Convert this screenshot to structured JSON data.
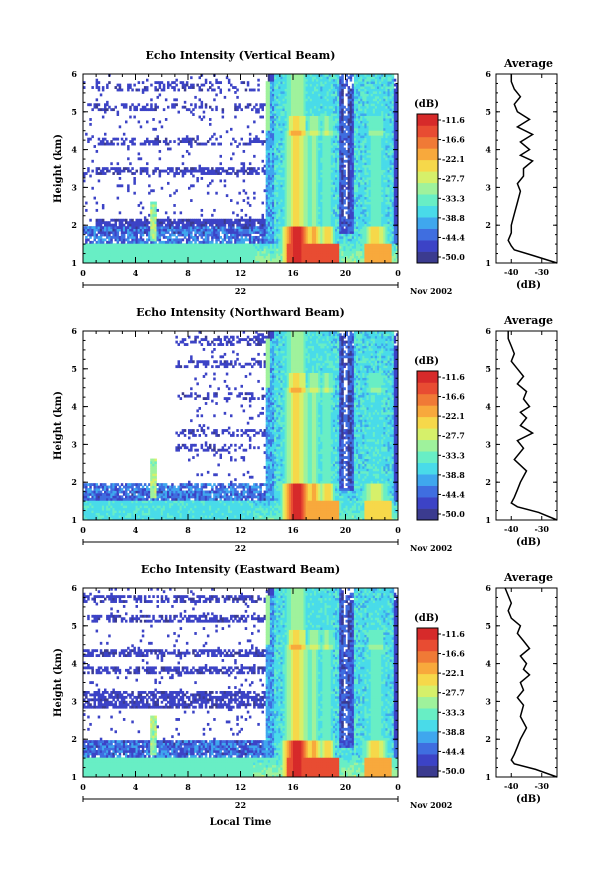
{
  "colors": {
    "palette": [
      "#3b3b8f",
      "#3c43c6",
      "#3f6ee0",
      "#3fa7ee",
      "#49dbe9",
      "#68eec5",
      "#9ff29c",
      "#d6f06a",
      "#f6d84a",
      "#f8a93c",
      "#f07a36",
      "#e84c32",
      "#d62a2a"
    ]
  },
  "shared": {
    "colorbar_unit": "(dB)",
    "colorbar_ticks": [
      "-11.6",
      "-16.6",
      "-22.1",
      "-27.7",
      "-33.3",
      "-38.8",
      "-44.4",
      "-50.0"
    ],
    "time_ticks": [
      "0",
      "4",
      "8",
      "12",
      "16",
      "20",
      "0"
    ],
    "date_center": "22",
    "date_right": "Nov 2002",
    "height_ticks": [
      "1",
      "2",
      "3",
      "4",
      "5",
      "6"
    ],
    "ylabel": "Height (km)",
    "avg_title": "Average",
    "avg_xticks": [
      "-40",
      "-30"
    ],
    "avg_xlabel": "(dB)",
    "xlabel": "Local Time"
  },
  "chart_data": [
    {
      "type": "heatmap",
      "title": "Echo Intensity (Vertical Beam)",
      "ylabel": "Height (km)",
      "ylim": [
        1,
        6
      ],
      "xlim_hours": [
        0,
        24
      ],
      "colorbar_range_db": [
        -50.0,
        -11.6
      ],
      "average_profile": {
        "xlim_db": [
          -45,
          -25
        ],
        "height_km": [
          1.0,
          1.2,
          1.35,
          1.45,
          1.6,
          1.8,
          2.0,
          2.3,
          2.6,
          2.9,
          3.1,
          3.3,
          3.5,
          3.7,
          3.85,
          4.0,
          4.2,
          4.4,
          4.6,
          4.8,
          5.0,
          5.2,
          5.4,
          5.6,
          5.8,
          6.0
        ],
        "echo_db": [
          -25,
          -33,
          -39,
          -40,
          -41,
          -40,
          -40,
          -39,
          -38,
          -37,
          -38,
          -36,
          -36,
          -33,
          -37,
          -34,
          -37,
          -33,
          -38,
          -34,
          -38,
          -39,
          -37,
          -39,
          -40,
          -40
        ]
      }
    },
    {
      "type": "heatmap",
      "title": "Echo Intensity (Northward Beam)",
      "ylabel": "Height (km)",
      "ylim": [
        1,
        6
      ],
      "xlim_hours": [
        0,
        24
      ],
      "colorbar_range_db": [
        -50.0,
        -11.6
      ],
      "average_profile": {
        "xlim_db": [
          -45,
          -25
        ],
        "height_km": [
          1.0,
          1.2,
          1.35,
          1.45,
          1.6,
          1.8,
          2.0,
          2.3,
          2.6,
          2.9,
          3.1,
          3.3,
          3.5,
          3.7,
          3.85,
          4.0,
          4.2,
          4.4,
          4.6,
          4.8,
          5.0,
          5.2,
          5.4,
          5.6,
          5.8,
          6.0
        ],
        "echo_db": [
          -25,
          -31,
          -38,
          -40,
          -39,
          -38,
          -37,
          -35,
          -39,
          -36,
          -38,
          -33,
          -37,
          -35,
          -37,
          -34,
          -36,
          -35,
          -38,
          -36,
          -38,
          -40,
          -39,
          -40,
          -41,
          -41
        ]
      }
    },
    {
      "type": "heatmap",
      "title": "Echo Intensity (Eastward Beam)",
      "ylabel": "Height (km)",
      "ylim": [
        1,
        6
      ],
      "xlim_hours": [
        0,
        24
      ],
      "colorbar_range_db": [
        -50.0,
        -11.6
      ],
      "average_profile": {
        "xlim_db": [
          -45,
          -25
        ],
        "height_km": [
          1.0,
          1.2,
          1.35,
          1.45,
          1.6,
          1.8,
          2.0,
          2.3,
          2.6,
          2.9,
          3.1,
          3.3,
          3.5,
          3.7,
          3.85,
          4.0,
          4.2,
          4.4,
          4.6,
          4.8,
          5.0,
          5.2,
          5.4,
          5.6,
          5.8,
          6.0
        ],
        "echo_db": [
          -25,
          -32,
          -39,
          -40,
          -39,
          -38,
          -37,
          -35,
          -37,
          -36,
          -38,
          -36,
          -37,
          -34,
          -36,
          -35,
          -37,
          -34,
          -36,
          -38,
          -37,
          -40,
          -41,
          -40,
          -41,
          -42
        ]
      }
    }
  ]
}
